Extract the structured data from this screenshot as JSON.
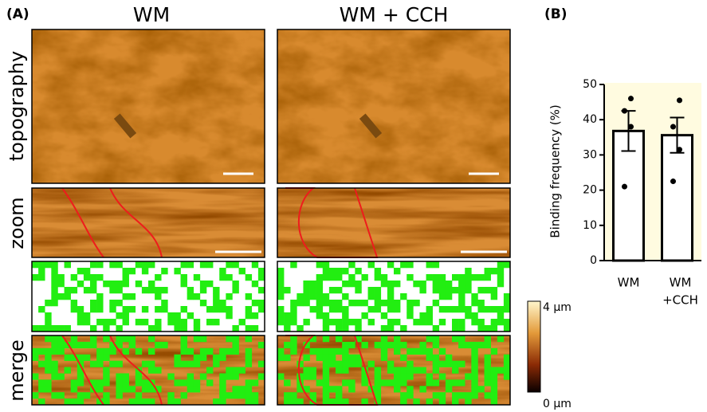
{
  "panel_a": {
    "label": "(A)",
    "columns": [
      "WM",
      "WM + CCH"
    ],
    "rows": [
      "topography",
      "zoom",
      "merge"
    ],
    "colorbar": [
      "4 µm",
      "0 µm"
    ]
  },
  "chart_data": {
    "type": "bar",
    "label": "(B)",
    "y_label": "Binding frequency (%)",
    "categories": [
      "WM",
      [
        "WM",
        "+CCH"
      ]
    ],
    "values": [
      36.8,
      35.6
    ],
    "errors": [
      5.7,
      5.0
    ],
    "points": [
      [
        46,
        42.5,
        38,
        21
      ],
      [
        45.5,
        38,
        31.5,
        22.5
      ]
    ],
    "color": "#ffffff",
    "background": "#fffbe0",
    "ylim": [
      0,
      50
    ],
    "yticks": [
      0,
      10,
      20,
      30,
      40,
      50
    ]
  }
}
